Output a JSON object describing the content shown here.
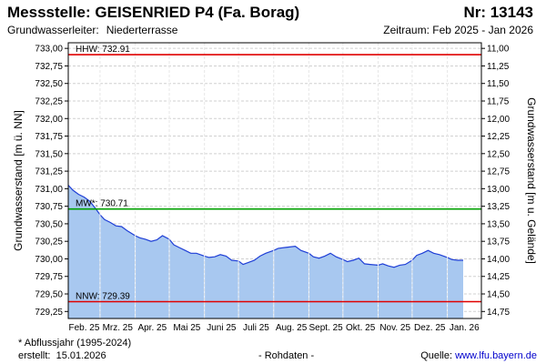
{
  "header": {
    "title": "Messstelle: GEISENRIED P4 (Fa. Borag)",
    "station_no": "Nr: 13143",
    "aquifer_label": "Grundwasserleiter:",
    "aquifer_value": "Niederterrasse",
    "period": "Zeitraum: Feb 2025 - Jan 2026"
  },
  "footer": {
    "note": "* Abflussjahr (1995-2024)",
    "created_label": "erstellt:",
    "created_date": "15.01.2026",
    "raw_label": "- Rohdaten -",
    "source_label": "Quelle:",
    "source_url": "www.lfu.bayern.de"
  },
  "colors": {
    "area_fill": "#a8c8f0",
    "line": "#1f3fd6",
    "hhw": "#e00000",
    "mw": "#00a000",
    "nnw": "#e00000",
    "grid": "#d0d0d0"
  },
  "chart_data": {
    "type": "area",
    "ylabel": "Grundwasserstand [m ü. NN]",
    "ylabel_right": "Grundwasserstand [m u. Gelände]",
    "ylim": [
      729.15,
      733.08
    ],
    "y_ticks": [
      "733,00",
      "732,75",
      "732,50",
      "732,25",
      "732,00",
      "731,75",
      "731,50",
      "731,25",
      "731,00",
      "730,75",
      "730,50",
      "730,25",
      "730,00",
      "729,75",
      "729,50",
      "729,25"
    ],
    "y_tick_values": [
      733.0,
      732.75,
      732.5,
      732.25,
      732.0,
      731.75,
      731.5,
      731.25,
      731.0,
      730.75,
      730.5,
      730.25,
      730.0,
      729.75,
      729.5,
      729.25
    ],
    "y2_ticks": [
      "11,00",
      "11,25",
      "11,50",
      "11,75",
      "12,00",
      "12,25",
      "12,50",
      "12,75",
      "13,00",
      "13,25",
      "13,50",
      "13,75",
      "14,00",
      "14,25",
      "14,50",
      "14,75"
    ],
    "y2_tick_values": [
      11.0,
      11.25,
      11.5,
      11.75,
      12.0,
      12.25,
      12.5,
      12.75,
      13.0,
      13.25,
      13.5,
      13.75,
      14.0,
      14.25,
      14.5,
      14.75
    ],
    "ground_level": 744.0,
    "x_months": [
      "Feb. 25",
      "Mrz. 25",
      "Apr. 25",
      "Mai 25",
      "Juni 25",
      "Juli 25",
      "Aug. 25",
      "Sept. 25",
      "Okt. 25",
      "Nov. 25",
      "Dez. 25",
      "Jan. 26"
    ],
    "x_range": [
      "2025-02-01",
      "2026-01-31"
    ],
    "reference_lines": [
      {
        "label": "HHW: 732.91",
        "value": 732.91,
        "color": "#e00000"
      },
      {
        "label": "MW*: 730.71",
        "value": 730.71,
        "color": "#00a000"
      },
      {
        "label": "NNW: 729.39",
        "value": 729.39,
        "color": "#e00000"
      }
    ],
    "series": [
      {
        "x": [
          "2025-02-01",
          "2025-02-05",
          "2025-02-10",
          "2025-02-15",
          "2025-02-20",
          "2025-02-25",
          "2025-03-01",
          "2025-03-05",
          "2025-03-10",
          "2025-03-15",
          "2025-03-20",
          "2025-03-25",
          "2025-04-01",
          "2025-04-05",
          "2025-04-10",
          "2025-04-15",
          "2025-04-20",
          "2025-04-25",
          "2025-05-01",
          "2025-05-05",
          "2025-05-10",
          "2025-05-15",
          "2025-05-20",
          "2025-05-25",
          "2025-06-01",
          "2025-06-05",
          "2025-06-10",
          "2025-06-15",
          "2025-06-20",
          "2025-06-25",
          "2025-07-01",
          "2025-07-05",
          "2025-07-10",
          "2025-07-15",
          "2025-07-20",
          "2025-07-25",
          "2025-08-01",
          "2025-08-05",
          "2025-08-10",
          "2025-08-15",
          "2025-08-20",
          "2025-08-25",
          "2025-09-01",
          "2025-09-05",
          "2025-09-10",
          "2025-09-15",
          "2025-09-20",
          "2025-09-25",
          "2025-10-01",
          "2025-10-05",
          "2025-10-10",
          "2025-10-15",
          "2025-10-20",
          "2025-10-25",
          "2025-11-01",
          "2025-11-05",
          "2025-11-10",
          "2025-11-15",
          "2025-11-20",
          "2025-11-25",
          "2025-12-01",
          "2025-12-05",
          "2025-12-10",
          "2025-12-15",
          "2025-12-20",
          "2025-12-25",
          "2026-01-01",
          "2026-01-05",
          "2026-01-10",
          "2026-01-15"
        ],
        "values": [
          731.05,
          730.98,
          730.92,
          730.88,
          730.82,
          730.72,
          730.63,
          730.56,
          730.52,
          730.47,
          730.46,
          730.4,
          730.33,
          730.3,
          730.28,
          730.25,
          730.27,
          730.33,
          730.28,
          730.2,
          730.16,
          730.12,
          730.08,
          730.08,
          730.04,
          730.02,
          730.03,
          730.06,
          730.04,
          729.98,
          729.97,
          729.92,
          729.95,
          729.98,
          730.04,
          730.08,
          730.12,
          730.15,
          730.16,
          730.17,
          730.18,
          730.12,
          730.08,
          730.03,
          730.01,
          730.04,
          730.08,
          730.03,
          729.99,
          729.96,
          729.98,
          730.01,
          729.93,
          729.92,
          729.91,
          729.93,
          729.9,
          729.88,
          729.91,
          729.92,
          729.98,
          730.05,
          730.08,
          730.12,
          730.08,
          730.06,
          730.02,
          729.99,
          729.98,
          729.98
        ]
      }
    ]
  }
}
